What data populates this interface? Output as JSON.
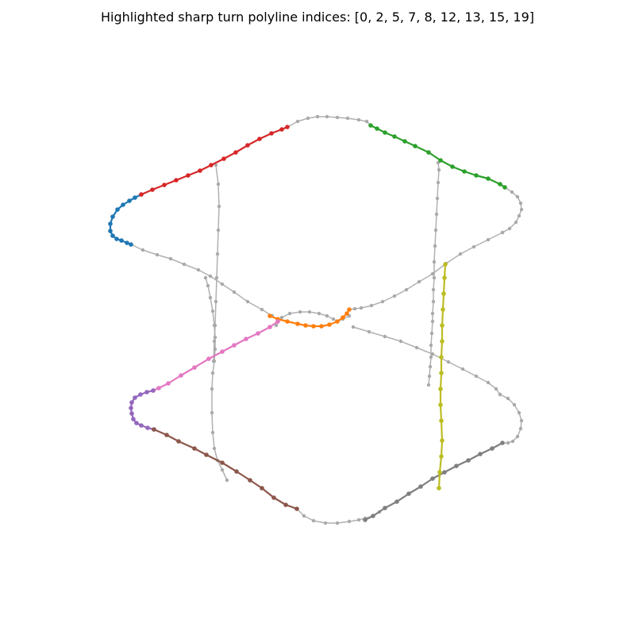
{
  "chart_data": {
    "type": "line",
    "title": "Highlighted sharp turn polyline indices: [0, 2, 5, 7, 8, 12, 13, 15, 19]",
    "xlabel": "",
    "ylabel": "",
    "axes_visible": false,
    "grid": false,
    "legend": "none",
    "highlighted_indices": [
      0,
      2,
      5,
      7,
      8,
      12,
      13,
      15,
      19
    ],
    "colors": {
      "background_trace": "#a9a9a9",
      "tab:blue": "#1f77b4",
      "tab:orange": "#ff7f0e",
      "tab:green": "#2ca02c",
      "tab:red": "#d62728",
      "tab:purple": "#9467bd",
      "tab:brown": "#8c564b",
      "tab:pink": "#e377c2",
      "tab:gray": "#7f7f7f",
      "tab:olive": "#bcbd22"
    },
    "polylines": [
      {
        "highlighted": false,
        "color": "#a9a9a9",
        "x": [
          362,
          375,
          388,
          400,
          412,
          425,
          438,
          452,
          462,
          467
        ],
        "y": [
          160,
          153,
          149,
          147,
          147,
          148,
          149,
          151,
          153,
          158
        ]
      },
      {
        "highlighted": false,
        "color": "#a9a9a9",
        "x": [
          636,
          645,
          652,
          656,
          657,
          654,
          650,
          642,
          633
        ],
        "y": [
          236,
          242,
          248,
          256,
          264,
          272,
          280,
          288,
          293
        ]
      },
      {
        "highlighted": false,
        "color": "#a9a9a9",
        "x": [
          633,
          615,
          597,
          580,
          562,
          545,
          528,
          512,
          497,
          482,
          468,
          455,
          447,
          440
        ],
        "y": [
          293,
          302,
          311,
          320,
          332,
          345,
          355,
          365,
          373,
          380,
          385,
          388,
          389,
          390
        ]
      },
      {
        "highlighted": false,
        "color": "#a9a9a9",
        "x": [
          165,
          180,
          198,
          215,
          232,
          250,
          265,
          280,
          295,
          312,
          330,
          343
        ],
        "y": [
          308,
          315,
          321,
          326,
          333,
          340,
          348,
          358,
          368,
          380,
          390,
          398
        ]
      },
      {
        "highlighted": false,
        "color": "#a9a9a9",
        "x": [
          348,
          355,
          365,
          378,
          390,
          402,
          412,
          420,
          425,
          432,
          440
        ],
        "y": [
          410,
          400,
          395,
          393,
          393,
          395,
          398,
          402,
          405,
          402,
          398
        ]
      },
      {
        "highlighted": false,
        "color": "#a9a9a9",
        "x": [
          445,
          465,
          485,
          505,
          525,
          545,
          565,
          583,
          600,
          615,
          625,
          630
        ],
        "y": [
          412,
          418,
          424,
          430,
          438,
          446,
          456,
          465,
          474,
          482,
          490,
          497
        ]
      },
      {
        "highlighted": false,
        "color": "#a9a9a9",
        "x": [
          630,
          640,
          648,
          654,
          657,
          656,
          652,
          646,
          640,
          633
        ],
        "y": [
          497,
          502,
          510,
          520,
          530,
          540,
          550,
          556,
          558,
          558
        ]
      },
      {
        "highlighted": false,
        "color": "#a9a9a9",
        "x": [
          374,
          383,
          395,
          410,
          425,
          440,
          452,
          460,
          470,
          478
        ],
        "y": [
          641,
          650,
          656,
          659,
          659,
          657,
          655,
          653,
          650,
          645
        ]
      },
      {
        "highlighted": false,
        "color": "#a9a9a9",
        "x": [
          552,
          553,
          552,
          551,
          550,
          549,
          548,
          547,
          547,
          546,
          546,
          545,
          545,
          544,
          543,
          543,
          542,
          541,
          540
        ],
        "y": [
          205,
          214,
          230,
          250,
          270,
          290,
          310,
          330,
          350,
          365,
          380,
          395,
          405,
          420,
          435,
          450,
          462,
          474,
          485
        ]
      },
      {
        "highlighted": false,
        "color": "#a9a9a9",
        "x": [
          272,
          275,
          276,
          275,
          274,
          273,
          272,
          271,
          270,
          269
        ],
        "y": [
          208,
          232,
          260,
          290,
          320,
          350,
          380,
          410,
          430,
          455
        ]
      },
      {
        "highlighted": false,
        "color": "#a9a9a9",
        "x": [
          259,
          262,
          265,
          268,
          270,
          271,
          271,
          270,
          268,
          267,
          267,
          268,
          270,
          274,
          280,
          286
        ],
        "y": [
          350,
          360,
          375,
          392,
          410,
          425,
          440,
          455,
          470,
          490,
          520,
          545,
          565,
          580,
          592,
          605
        ]
      },
      {
        "highlighted": true,
        "color": "#1f77b4",
        "x": [
          178,
          170,
          163,
          155,
          148,
          142,
          139,
          139,
          142,
          147,
          153,
          160,
          165
        ],
        "y": [
          245,
          249,
          253,
          258,
          264,
          273,
          282,
          291,
          297,
          301,
          303,
          306,
          308
        ]
      },
      {
        "highlighted": true,
        "color": "#d62728",
        "x": [
          178,
          192,
          207,
          222,
          237,
          252,
          266,
          282,
          297,
          312,
          327,
          342,
          355,
          362
        ],
        "y": [
          245,
          239,
          233,
          227,
          221,
          215,
          208,
          200,
          192,
          183,
          175,
          168,
          163,
          160
        ]
      },
      {
        "highlighted": true,
        "color": "#2ca02c",
        "x": [
          467,
          475,
          485,
          497,
          510,
          523,
          540,
          555,
          570,
          585,
          600,
          615,
          630,
          636
        ],
        "y": [
          158,
          162,
          167,
          172,
          178,
          184,
          192,
          202,
          210,
          216,
          221,
          225,
          232,
          236
        ]
      },
      {
        "highlighted": true,
        "color": "#ff7f0e",
        "x": [
          340,
          350,
          362,
          375,
          385,
          395,
          405,
          415,
          425,
          432,
          437,
          440
        ],
        "y": [
          398,
          402,
          405,
          408,
          410,
          411,
          411,
          409,
          405,
          400,
          395,
          390
        ]
      },
      {
        "highlighted": true,
        "color": "#e377c2",
        "x": [
          350,
          340,
          325,
          310,
          295,
          280,
          263,
          245,
          228,
          212,
          200,
          193
        ],
        "y": [
          405,
          412,
          420,
          427,
          435,
          443,
          452,
          463,
          473,
          483,
          489,
          492
        ]
      },
      {
        "highlighted": true,
        "color": "#9467bd",
        "x": [
          193,
          185,
          177,
          170,
          166,
          165,
          166,
          168,
          172,
          178,
          186,
          194
        ],
        "y": [
          492,
          494,
          497,
          501,
          507,
          514,
          521,
          528,
          533,
          536,
          539,
          541
        ]
      },
      {
        "highlighted": true,
        "color": "#8c564b",
        "x": [
          194,
          210,
          225,
          245,
          260,
          280,
          298,
          315,
          330,
          345,
          360,
          374
        ],
        "y": [
          541,
          548,
          556,
          565,
          573,
          583,
          594,
          605,
          615,
          627,
          636,
          641
        ]
      },
      {
        "highlighted": true,
        "color": "#7f7f7f",
        "x": [
          633,
          620,
          605,
          590,
          575,
          560,
          545,
          530,
          515,
          500,
          485,
          470,
          460
        ],
        "y": [
          558,
          565,
          572,
          580,
          587,
          595,
          603,
          613,
          622,
          632,
          640,
          650,
          655
        ]
      },
      {
        "highlighted": true,
        "color": "#bcbd22",
        "x": [
          561,
          560,
          559,
          558,
          557,
          557,
          556,
          556,
          555,
          555,
          556,
          557,
          556,
          554,
          553
        ],
        "y": [
          333,
          350,
          370,
          390,
          410,
          430,
          450,
          470,
          490,
          510,
          530,
          555,
          575,
          595,
          615
        ]
      }
    ]
  }
}
